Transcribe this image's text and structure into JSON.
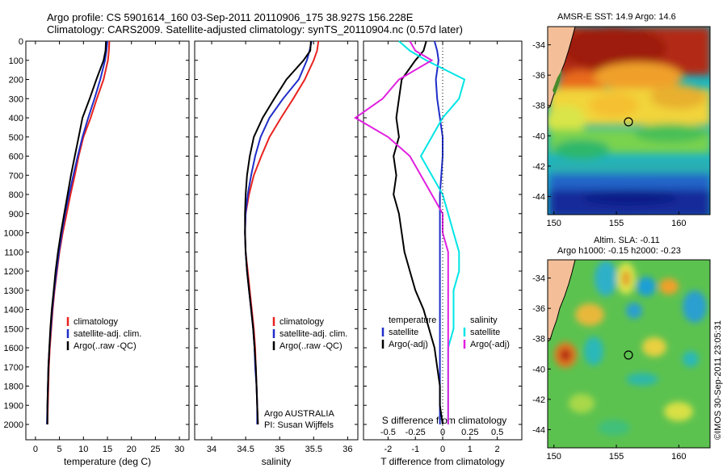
{
  "header": {
    "line1": "Argo profile: CS 5901614_160 03-Sep-2011 20110906_175 38.927S 156.228E",
    "line2": "Climatology: CARS2009. Satellite-adjusted climatology: synTS_20110904.nc (0.57d later)"
  },
  "map_titles": {
    "sst": "AMSR-E SST: 14.9 Argo: 14.6",
    "sla_line1": "Altim. SLA: -0.11",
    "sla_line2": "Argo h1000: -0.15 h2000: -0.23"
  },
  "credit": "©IMOS 30-Sep-2011 23:05:31",
  "chart_data": [
    {
      "type": "line",
      "xlabel": "temperature (deg C)",
      "ylabel": "",
      "xlim": [
        -2,
        32
      ],
      "ylim": [
        2080,
        0
      ],
      "xticks": [
        "0",
        "5",
        "10",
        "15",
        "20",
        "25",
        "30"
      ],
      "yticks": [
        "0",
        "100",
        "200",
        "300",
        "400",
        "500",
        "600",
        "700",
        "800",
        "900",
        "1000",
        "1100",
        "1200",
        "1300",
        "1400",
        "1500",
        "1600",
        "1700",
        "1800",
        "1900",
        "2000"
      ],
      "legend": {
        "position": "lower-middle",
        "entries": [
          "climatology",
          "satellite-adj. clim.",
          "Argo(..raw -QC)"
        ]
      },
      "series": [
        {
          "name": "climatology",
          "color": "#e8231f",
          "x": [
            15.4,
            15.3,
            15.1,
            14.2,
            12.8,
            11.5,
            10.0,
            9.0,
            8.2,
            7.3,
            6.5,
            5.7,
            5.0,
            4.5,
            4.0,
            3.6,
            3.3,
            3.0,
            2.8,
            2.7,
            2.6,
            2.5
          ],
          "y": [
            0,
            50,
            100,
            200,
            300,
            400,
            500,
            600,
            700,
            800,
            900,
            1000,
            1100,
            1200,
            1300,
            1400,
            1500,
            1600,
            1700,
            1800,
            1900,
            2000
          ]
        },
        {
          "name": "satellite-adj. clim.",
          "color": "#1f2ec8",
          "x": [
            15.0,
            14.8,
            14.5,
            13.5,
            12.3,
            11.0,
            9.8,
            8.8,
            7.9,
            7.0,
            6.2,
            5.5,
            4.9,
            4.4,
            3.9,
            3.5,
            3.2,
            2.9,
            2.7,
            2.6,
            2.5,
            2.4
          ],
          "y": [
            0,
            50,
            100,
            200,
            300,
            400,
            500,
            600,
            700,
            800,
            900,
            1000,
            1100,
            1200,
            1300,
            1400,
            1500,
            1600,
            1700,
            1800,
            1900,
            2000
          ]
        },
        {
          "name": "Argo(..raw -QC)",
          "color": "#000000",
          "x": [
            14.7,
            14.6,
            14.2,
            12.7,
            11.3,
            9.8,
            9.0,
            8.2,
            7.4,
            6.7,
            6.0,
            5.3,
            4.7,
            4.2,
            3.8,
            3.4,
            3.1,
            2.9,
            2.7,
            2.6,
            2.5,
            2.5
          ],
          "y": [
            0,
            50,
            100,
            200,
            300,
            400,
            500,
            600,
            700,
            800,
            900,
            1000,
            1100,
            1200,
            1300,
            1400,
            1500,
            1600,
            1700,
            1800,
            1900,
            2000
          ]
        }
      ]
    },
    {
      "type": "line",
      "xlabel": "salinity",
      "xlim": [
        33.75,
        36.15
      ],
      "ylim": [
        2080,
        0
      ],
      "xticks": [
        "34",
        "34.5",
        "35",
        "35.5",
        "36"
      ],
      "legend": {
        "position": "lower-middle",
        "entries": [
          "climatology",
          "satellite-adj. clim.",
          "Argo(..raw -QC)"
        ]
      },
      "annotation": [
        "Argo AUSTRALIA",
        "PI: Susan Wijffels"
      ],
      "series": [
        {
          "name": "climatology",
          "color": "#e8231f",
          "x": [
            35.57,
            35.55,
            35.5,
            35.37,
            35.2,
            35.02,
            34.85,
            34.73,
            34.62,
            34.55,
            34.5,
            34.49,
            34.5,
            34.53,
            34.56,
            34.59,
            34.62,
            34.64,
            34.65,
            34.66,
            34.67,
            34.68
          ],
          "y": [
            0,
            50,
            100,
            200,
            300,
            400,
            500,
            600,
            700,
            800,
            900,
            1000,
            1100,
            1200,
            1300,
            1400,
            1500,
            1600,
            1700,
            1800,
            1900,
            2000
          ]
        },
        {
          "name": "satellite-adj. clim.",
          "color": "#1f2ec8",
          "x": [
            35.47,
            35.44,
            35.4,
            35.28,
            35.05,
            34.85,
            34.72,
            34.64,
            34.58,
            34.53,
            34.5,
            34.49,
            34.5,
            34.52,
            34.55,
            34.58,
            34.61,
            34.63,
            34.64,
            34.66,
            34.67,
            34.67
          ],
          "y": [
            0,
            50,
            100,
            200,
            300,
            400,
            500,
            600,
            700,
            800,
            900,
            1000,
            1100,
            1200,
            1300,
            1400,
            1500,
            1600,
            1700,
            1800,
            1900,
            2000
          ]
        },
        {
          "name": "Argo(..raw -QC)",
          "color": "#000000",
          "x": [
            35.46,
            35.45,
            35.35,
            35.1,
            34.92,
            34.75,
            34.62,
            34.56,
            34.52,
            34.5,
            34.49,
            34.49,
            34.5,
            34.52,
            34.55,
            34.58,
            34.61,
            34.63,
            34.65,
            34.66,
            34.67,
            34.68
          ],
          "y": [
            0,
            50,
            100,
            200,
            300,
            400,
            500,
            600,
            700,
            800,
            900,
            1000,
            1100,
            1200,
            1300,
            1400,
            1500,
            1600,
            1700,
            1800,
            1900,
            2000
          ]
        }
      ]
    },
    {
      "type": "line",
      "xlabel": "T difference from climatology",
      "xlabel_top": "S difference from climatology",
      "xlim": [
        -2.9,
        2.9
      ],
      "ylim": [
        2080,
        0
      ],
      "xticks": [
        "-2",
        "-1",
        "0",
        "1",
        "2"
      ],
      "xticks_s": [
        "-0.5",
        "-0.25",
        "0",
        "0.25",
        "0.5"
      ],
      "legend": {
        "position": "lower-middle",
        "temp_header": "temperature",
        "sal_header": "salinity",
        "entries_temp": [
          "satellite",
          "Argo(-adj)"
        ],
        "entries_sal": [
          "satellite",
          "Argo(-adj)"
        ]
      },
      "series": [
        {
          "name": "satellite",
          "quantity": "temperature",
          "color": "#1f2ec8",
          "x": [
            -0.3,
            -0.2,
            -0.15,
            -0.25,
            -0.2,
            -0.1,
            0.0,
            0.0,
            -0.05,
            -0.1,
            -0.1,
            -0.1,
            -0.1,
            -0.1,
            -0.1,
            -0.1,
            -0.1,
            -0.1,
            -0.1,
            -0.1,
            -0.1,
            -0.1
          ],
          "y": [
            0,
            50,
            100,
            200,
            300,
            400,
            500,
            600,
            700,
            800,
            900,
            1000,
            1100,
            1200,
            1300,
            1400,
            1500,
            1600,
            1700,
            1800,
            1900,
            2000
          ]
        },
        {
          "name": "Argo(-adj)",
          "quantity": "temperature",
          "color": "#000000",
          "x": [
            -0.6,
            -0.7,
            -1.0,
            -1.5,
            -1.6,
            -1.7,
            -1.6,
            -1.8,
            -1.7,
            -1.8,
            -1.6,
            -1.5,
            -1.4,
            -1.2,
            -1.0,
            -0.7,
            -0.5,
            -0.3,
            -0.2,
            -0.1,
            -0.1,
            0.0
          ],
          "y": [
            0,
            50,
            100,
            200,
            300,
            400,
            500,
            600,
            700,
            800,
            900,
            1000,
            1100,
            1200,
            1300,
            1400,
            1500,
            1600,
            1700,
            1800,
            1900,
            2000
          ]
        },
        {
          "name": "satellite",
          "quantity": "salinity",
          "color": "#00e5e5",
          "x": [
            -0.4,
            -0.3,
            -0.15,
            0.2,
            0.15,
            0.0,
            -0.1,
            -0.2,
            -0.1,
            0.0,
            0.05,
            0.1,
            0.15,
            0.15,
            0.1,
            0.1,
            0.1,
            0.05,
            0.05,
            0.05,
            0.05,
            0.05
          ],
          "y": [
            0,
            50,
            100,
            200,
            300,
            400,
            500,
            600,
            700,
            800,
            900,
            1000,
            1100,
            1200,
            1300,
            1400,
            1500,
            1600,
            1700,
            1800,
            1900,
            2000
          ]
        },
        {
          "name": "Argo(-adj)",
          "quantity": "salinity",
          "color": "#e020e0",
          "x": [
            -0.3,
            -0.25,
            -0.1,
            -0.4,
            -0.55,
            -0.8,
            -0.5,
            -0.3,
            -0.2,
            -0.1,
            0.0,
            0.0,
            0.05,
            0.05,
            0.05,
            0.05,
            0.05,
            0.05,
            0.05,
            0.05,
            0.05,
            0.05
          ],
          "y": [
            0,
            50,
            100,
            200,
            300,
            400,
            500,
            600,
            700,
            800,
            900,
            1000,
            1100,
            1200,
            1300,
            1400,
            1500,
            1600,
            1700,
            1800,
            1900,
            2000
          ]
        }
      ]
    },
    {
      "type": "heatmap",
      "title": "AMSR-E SST: 14.9 Argo: 14.6",
      "xlim": [
        149.5,
        162.5
      ],
      "ylim": [
        -45.2,
        -32.8
      ],
      "xticks": [
        "150",
        "155",
        "160"
      ],
      "yticks": [
        "-34",
        "-36",
        "-38",
        "-40",
        "-42",
        "-44"
      ],
      "marker": {
        "lon": 156.228,
        "lat": -38.927
      }
    },
    {
      "type": "heatmap",
      "title": "Altim. SLA: -0.11 / Argo h1000: -0.15 h2000: -0.23",
      "xlim": [
        149.5,
        162.5
      ],
      "ylim": [
        -45.2,
        -32.8
      ],
      "xticks": [
        "150",
        "155",
        "160"
      ],
      "yticks": [
        "-34",
        "-36",
        "-38",
        "-40",
        "-42",
        "-44"
      ],
      "marker": {
        "lon": 156.228,
        "lat": -38.927
      }
    }
  ]
}
